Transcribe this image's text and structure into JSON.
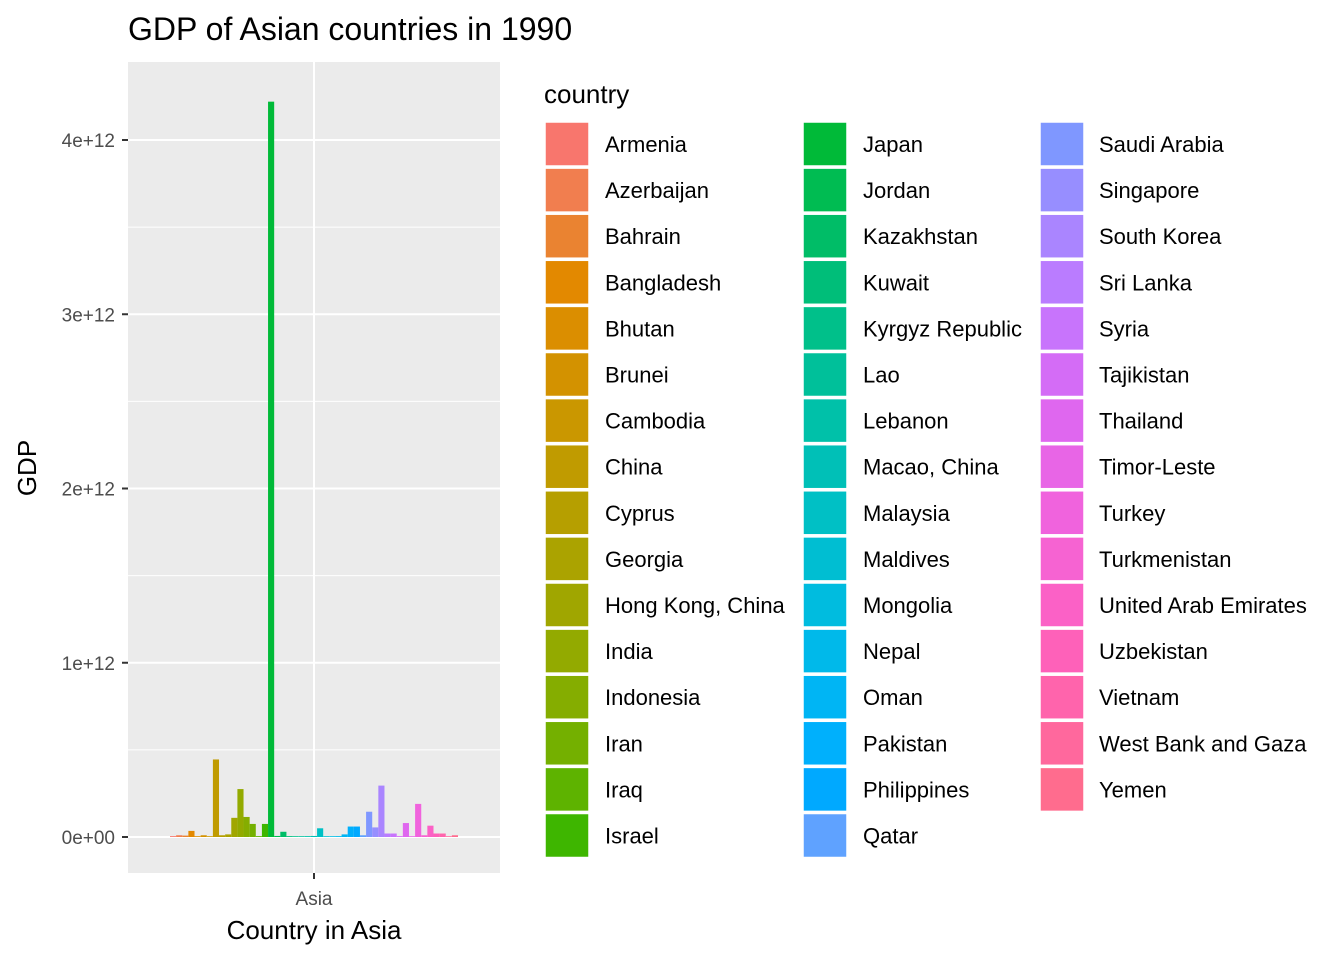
{
  "chart_data": {
    "type": "bar",
    "title": "GDP of Asian countries in 1990",
    "xlabel": "Country in Asia",
    "ylabel": "GDP",
    "categories": [
      "Asia"
    ],
    "ylim": [
      -100000000000.0,
      4350000000000.0
    ],
    "y_ticks": [
      0,
      1000000000000.0,
      2000000000000.0,
      3000000000000.0,
      4000000000000.0
    ],
    "y_tick_labels": [
      "0e+00",
      "1e+12",
      "2e+12",
      "3e+12",
      "4e+12"
    ],
    "grid": true,
    "legend_title": "country",
    "legend_position": "right",
    "series": [
      {
        "name": "Armenia",
        "color": "#F8766D",
        "values": [
          5000000000.0
        ]
      },
      {
        "name": "Azerbaijan",
        "color": "#F17E4F",
        "values": [
          10000000000.0
        ]
      },
      {
        "name": "Bahrain",
        "color": "#EA8331",
        "values": [
          8000000000.0
        ]
      },
      {
        "name": "Bangladesh",
        "color": "#E38900",
        "values": [
          35000000000.0
        ]
      },
      {
        "name": "Bhutan",
        "color": "#DB8E00",
        "values": [
          1000000000.0
        ]
      },
      {
        "name": "Brunei",
        "color": "#D39200",
        "values": [
          10000000000.0
        ]
      },
      {
        "name": "Cambodia",
        "color": "#CA9700",
        "values": [
          3000000000.0
        ]
      },
      {
        "name": "China",
        "color": "#C09B00",
        "values": [
          445000000000.0
        ]
      },
      {
        "name": "Cyprus",
        "color": "#B69F00",
        "values": [
          10000000000.0
        ]
      },
      {
        "name": "Georgia",
        "color": "#ABA300",
        "values": [
          15000000000.0
        ]
      },
      {
        "name": "Hong Kong, China",
        "color": "#A0A600",
        "values": [
          110000000000.0
        ]
      },
      {
        "name": "India",
        "color": "#93AA00",
        "values": [
          275000000000.0
        ]
      },
      {
        "name": "Indonesia",
        "color": "#85AD00",
        "values": [
          115000000000.0
        ]
      },
      {
        "name": "Iran",
        "color": "#74B000",
        "values": [
          75000000000.0
        ]
      },
      {
        "name": "Iraq",
        "color": "#5EB300",
        "values": [
          5000000000.0
        ]
      },
      {
        "name": "Israel",
        "color": "#3EB600",
        "values": [
          75000000000.0
        ]
      },
      {
        "name": "Japan",
        "color": "#00BA38",
        "values": [
          4220000000000.0
        ]
      },
      {
        "name": "Jordan",
        "color": "#00BC52",
        "values": [
          6000000000.0
        ]
      },
      {
        "name": "Kazakhstan",
        "color": "#00BD67",
        "values": [
          30000000000.0
        ]
      },
      {
        "name": "Kuwait",
        "color": "#00BE79",
        "values": [
          5000000000.0
        ]
      },
      {
        "name": "Kyrgyz Republic",
        "color": "#00C08A",
        "values": [
          4000000000.0
        ]
      },
      {
        "name": "Lao",
        "color": "#00C09A",
        "values": [
          2000000000.0
        ]
      },
      {
        "name": "Lebanon",
        "color": "#00C1A9",
        "values": [
          5000000000.0
        ]
      },
      {
        "name": "Macao, China",
        "color": "#00C0B7",
        "values": [
          6000000000.0
        ]
      },
      {
        "name": "Malaysia",
        "color": "#00C0C5",
        "values": [
          50000000000.0
        ]
      },
      {
        "name": "Maldives",
        "color": "#00BED2",
        "values": [
          1000000000.0
        ]
      },
      {
        "name": "Mongolia",
        "color": "#00BCDF",
        "values": [
          3000000000.0
        ]
      },
      {
        "name": "Nepal",
        "color": "#00B9EA",
        "values": [
          5000000000.0
        ]
      },
      {
        "name": "Oman",
        "color": "#00B5F4",
        "values": [
          15000000000.0
        ]
      },
      {
        "name": "Pakistan",
        "color": "#00B0FC",
        "values": [
          60000000000.0
        ]
      },
      {
        "name": "Philippines",
        "color": "#00A9FF",
        "values": [
          60000000000.0
        ]
      },
      {
        "name": "Qatar",
        "color": "#5FA2FF",
        "values": [
          10000000000.0
        ]
      },
      {
        "name": "Saudi Arabia",
        "color": "#7F97FF",
        "values": [
          145000000000.0
        ]
      },
      {
        "name": "Singapore",
        "color": "#978EFF",
        "values": [
          55000000000.0
        ]
      },
      {
        "name": "South Korea",
        "color": "#AA85FF",
        "values": [
          295000000000.0
        ]
      },
      {
        "name": "Sri Lanka",
        "color": "#BA7CFF",
        "values": [
          20000000000.0
        ]
      },
      {
        "name": "Syria",
        "color": "#C874FC",
        "values": [
          20000000000.0
        ]
      },
      {
        "name": "Tajikistan",
        "color": "#D46CF6",
        "values": [
          5000000000.0
        ]
      },
      {
        "name": "Thailand",
        "color": "#DF67EF",
        "values": [
          80000000000.0
        ]
      },
      {
        "name": "Timor-Leste",
        "color": "#E865E6",
        "values": [
          1000000000.0
        ]
      },
      {
        "name": "Turkey",
        "color": "#F063DD",
        "values": [
          190000000000.0
        ]
      },
      {
        "name": "Turkmenistan",
        "color": "#F663D2",
        "values": [
          10000000000.0
        ]
      },
      {
        "name": "United Arab Emirates",
        "color": "#FB61C6",
        "values": [
          65000000000.0
        ]
      },
      {
        "name": "Uzbekistan",
        "color": "#FE61B9",
        "values": [
          20000000000.0
        ]
      },
      {
        "name": "Vietnam",
        "color": "#FF64AC",
        "values": [
          20000000000.0
        ]
      },
      {
        "name": "West Bank and Gaza",
        "color": "#FF689D",
        "values": [
          3000000000.0
        ]
      },
      {
        "name": "Yemen",
        "color": "#FF6C8E",
        "values": [
          10000000000.0
        ]
      }
    ]
  }
}
